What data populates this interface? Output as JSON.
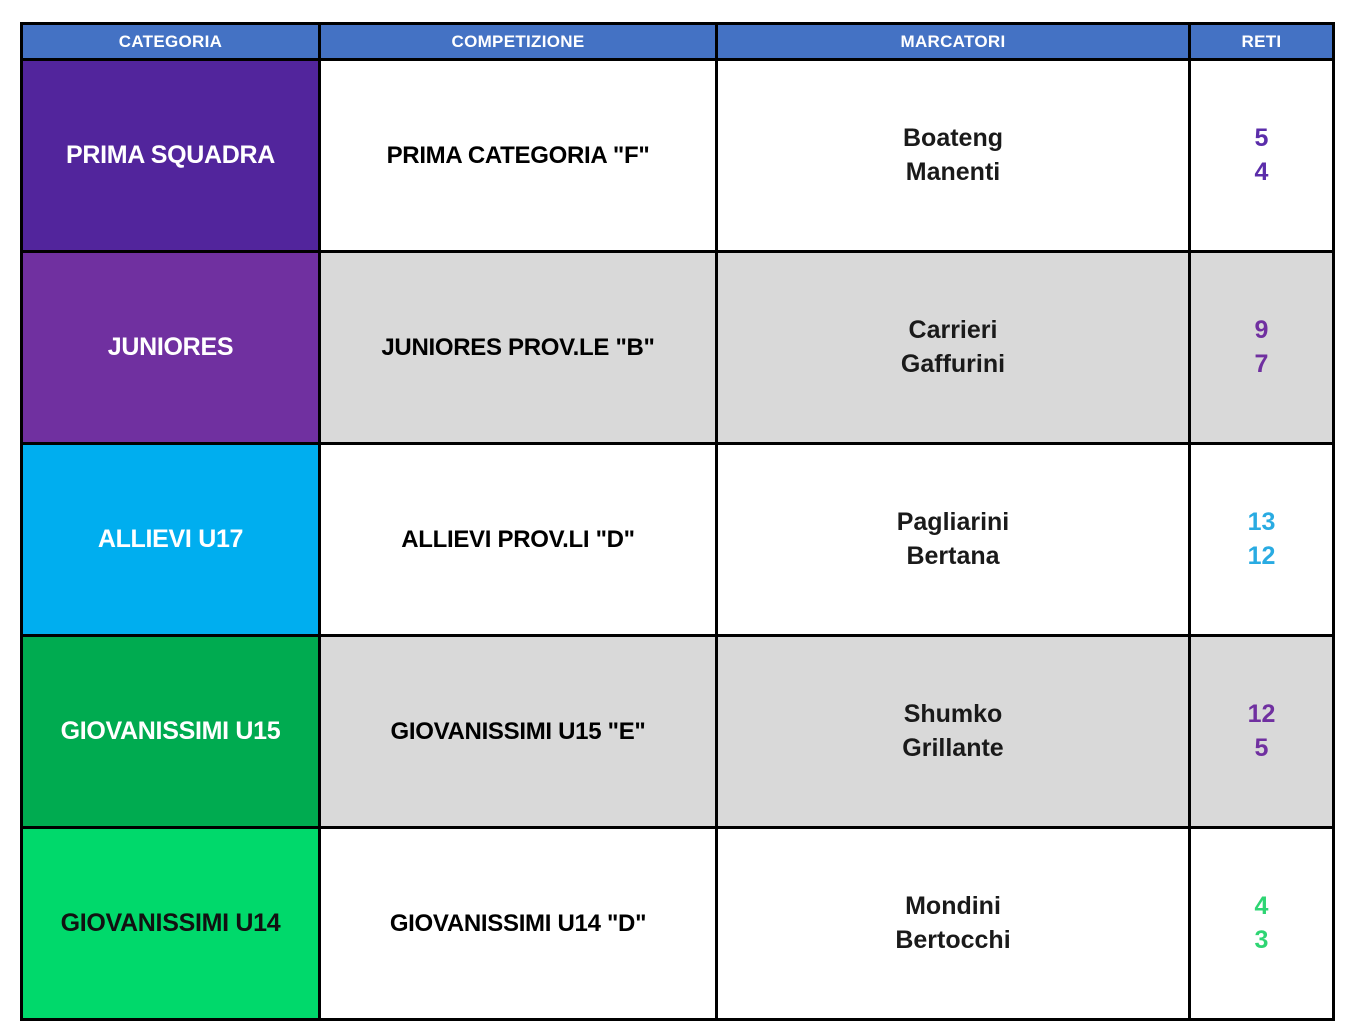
{
  "table": {
    "headers": [
      "CATEGORIA",
      "COMPETIZIONE",
      "MARCATORI",
      "RETI"
    ],
    "header_bg": "#4472c4",
    "header_text_color": "#ffffff",
    "border_color": "#000000",
    "rows": [
      {
        "categoria": "PRIMA SQUADRA",
        "categoria_bg": "#52259c",
        "categoria_text_color": "#ffffff",
        "competizione": "PRIMA CATEGORIA \"F\"",
        "row_bg": "#ffffff",
        "marcatori": [
          "Boateng",
          "Manenti"
        ],
        "reti": [
          "5",
          "4"
        ],
        "reti_color": "#5b2daa"
      },
      {
        "categoria": "JUNIORES",
        "categoria_bg": "#7030a0",
        "categoria_text_color": "#ffffff",
        "competizione": "JUNIORES PROV.LE \"B\"",
        "row_bg": "#d9d9d9",
        "marcatori": [
          "Carrieri",
          "Gaffurini"
        ],
        "reti": [
          "9",
          "7"
        ],
        "reti_color": "#7030a0"
      },
      {
        "categoria": "ALLIEVI U17",
        "categoria_bg": "#00aeef",
        "categoria_text_color": "#ffffff",
        "competizione": "ALLIEVI PROV.LI \"D\"",
        "row_bg": "#ffffff",
        "marcatori": [
          "Pagliarini",
          "Bertana"
        ],
        "reti": [
          "13",
          "12"
        ],
        "reti_color": "#29abe2"
      },
      {
        "categoria": "GIOVANISSIMI U15",
        "categoria_bg": "#00ab50",
        "categoria_text_color": "#ffffff",
        "competizione": "GIOVANISSIMI U15 \"E\"",
        "row_bg": "#d9d9d9",
        "marcatori": [
          "Shumko",
          "Grillante"
        ],
        "reti": [
          "12",
          "5"
        ],
        "reti_color": "#7030a0"
      },
      {
        "categoria": "GIOVANISSIMI U14",
        "categoria_bg": "#00d96b",
        "categoria_text_color": "#111111",
        "competizione": "GIOVANISSIMI U14 \"D\"",
        "row_bg": "#ffffff",
        "marcatori": [
          "Mondini",
          "Bertocchi"
        ],
        "reti": [
          "4",
          "3"
        ],
        "reti_color": "#2ed573"
      }
    ]
  }
}
